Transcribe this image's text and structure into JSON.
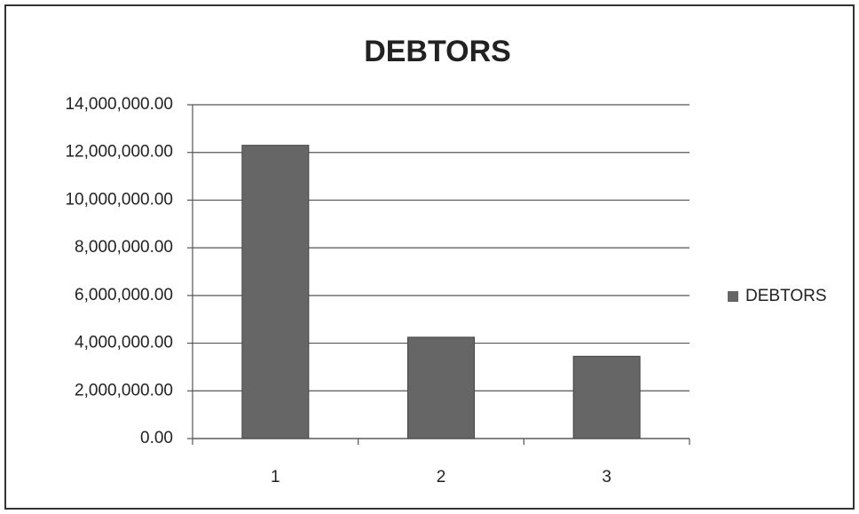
{
  "chart_data": {
    "type": "bar",
    "title": "DEBTORS",
    "categories": [
      "1",
      "2",
      "3"
    ],
    "series": [
      {
        "name": "DEBTORS",
        "color": "#666666",
        "values": [
          12300000,
          4250000,
          3450000
        ]
      }
    ],
    "ylim": [
      0,
      14000000
    ],
    "yticks": [
      {
        "value": 0,
        "label": "0.00"
      },
      {
        "value": 2000000,
        "label": "2,000,000.00"
      },
      {
        "value": 4000000,
        "label": "4,000,000.00"
      },
      {
        "value": 6000000,
        "label": "6,000,000.00"
      },
      {
        "value": 8000000,
        "label": "8,000,000.00"
      },
      {
        "value": 10000000,
        "label": "10,000,000.00"
      },
      {
        "value": 12000000,
        "label": "12,000,000.00"
      },
      {
        "value": 14000000,
        "label": "14,000,000.00"
      }
    ],
    "grid": true,
    "legend": "right"
  }
}
